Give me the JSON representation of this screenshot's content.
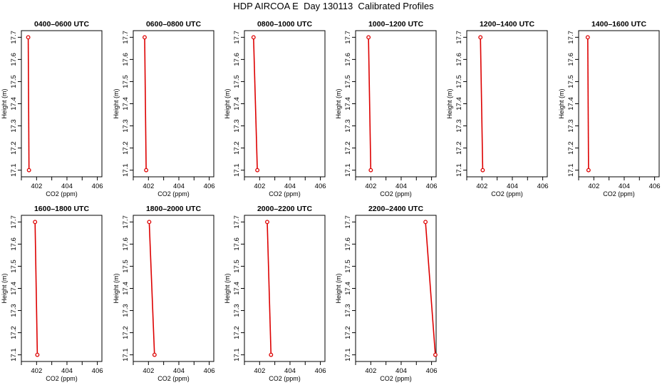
{
  "title": "HDP AIRCOA E  Day 130113  Calibrated Profiles",
  "style": {
    "line_color": "#dd0000",
    "marker_color": "#dd0000",
    "axis_color": "#000000",
    "background": "#ffffff"
  },
  "axes_common": {
    "xlabel": "CO2 (ppm)",
    "ylabel": "Height (m)",
    "xticks": [
      "402",
      "404",
      "406"
    ],
    "yticks": [
      "17.1",
      "17.2",
      "17.3",
      "17.4",
      "17.5",
      "17.6",
      "17.7"
    ],
    "xlim": [
      401.0,
      406.3
    ],
    "ylim": [
      17.07,
      17.73
    ],
    "grid": false
  },
  "chart_data": [
    {
      "type": "line",
      "title": "0400–0600 UTC",
      "x": [
        401.45,
        401.5
      ],
      "y": [
        17.7,
        17.1
      ]
    },
    {
      "type": "line",
      "title": "0600–0800 UTC",
      "x": [
        401.75,
        401.85
      ],
      "y": [
        17.7,
        17.1
      ]
    },
    {
      "type": "line",
      "title": "0800–1000 UTC",
      "x": [
        401.6,
        401.85
      ],
      "y": [
        17.7,
        17.1
      ]
    },
    {
      "type": "line",
      "title": "1000–1200 UTC",
      "x": [
        401.85,
        402.0
      ],
      "y": [
        17.7,
        17.1
      ]
    },
    {
      "type": "line",
      "title": "1200–1400 UTC",
      "x": [
        401.9,
        402.05
      ],
      "y": [
        17.7,
        17.1
      ]
    },
    {
      "type": "line",
      "title": "1400–1600 UTC",
      "x": [
        401.6,
        401.65
      ],
      "y": [
        17.7,
        17.1
      ]
    },
    {
      "type": "line",
      "title": "1600–1800 UTC",
      "x": [
        401.9,
        402.05
      ],
      "y": [
        17.7,
        17.1
      ]
    },
    {
      "type": "line",
      "title": "1800–2000 UTC",
      "x": [
        402.05,
        402.4
      ],
      "y": [
        17.7,
        17.1
      ]
    },
    {
      "type": "line",
      "title": "2000–2200 UTC",
      "x": [
        402.5,
        402.75
      ],
      "y": [
        17.7,
        17.1
      ]
    },
    {
      "type": "line",
      "title": "2200–2400 UTC",
      "x": [
        405.6,
        406.25
      ],
      "y": [
        17.7,
        17.1
      ]
    }
  ]
}
